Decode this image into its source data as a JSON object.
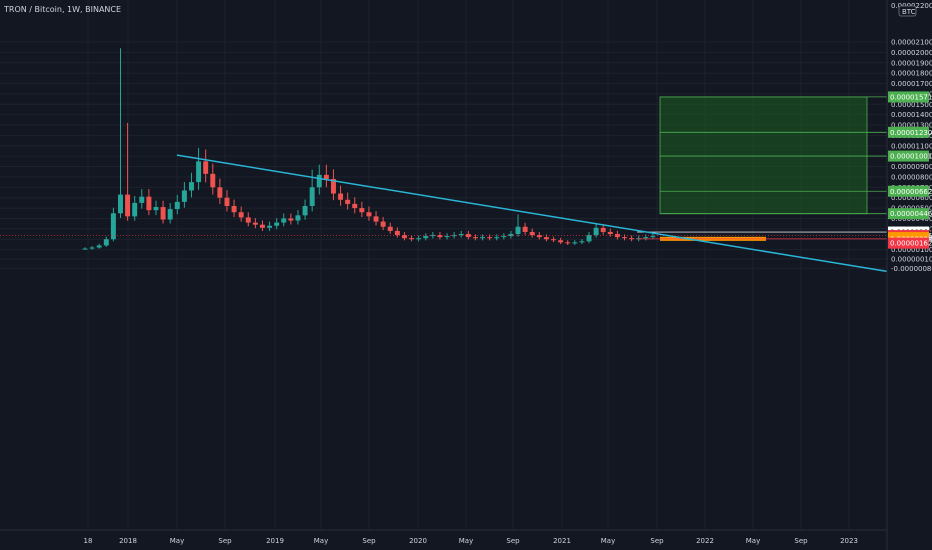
{
  "header": {
    "symbol_title": "TRON / Bitcoin, 1W, BINANCE",
    "currency": "BTC",
    "top_axis_label": "0.00002200"
  },
  "colors": {
    "background": "#131722",
    "up": "#26a69a",
    "down": "#ef5350",
    "trendline": "#29b6d6",
    "target_zone": "#1b5e20",
    "target_line": "#4caf50",
    "target_badge": "#4caf50",
    "current_price_badge": "#f23645",
    "entry_badge": "#ff9800"
  },
  "chart_data": {
    "type": "candlestick",
    "ylim": [
      -9e-07,
      2.2e-05
    ],
    "y_ticks": [
      "0.00002100",
      "0.00002000",
      "0.00001900",
      "0.00001800",
      "0.00001700",
      "0.00001600",
      "0.00001500",
      "0.00001400",
      "0.00001300",
      "0.00001200",
      "0.00001100",
      "0.00001000",
      "0.00000900",
      "0.00000800",
      "0.00000700",
      "0.00000600",
      "0.00000500",
      "0.00000400",
      "0.00000300",
      "0.00000200",
      "0.00000100",
      "0.00000010",
      "-0.00000080"
    ],
    "x_ticks": [
      "18",
      "2018",
      "May",
      "Sep",
      "2019",
      "May",
      "Sep",
      "2020",
      "May",
      "Sep",
      "2021",
      "May",
      "Sep",
      "2022",
      "May",
      "Sep",
      "2023"
    ],
    "series_close": [
      1.1e-06,
      1.2e-06,
      1.4e-06,
      2e-06,
      4.5e-06,
      6.3e-06,
      4.2e-06,
      5.5e-06,
      6.1e-06,
      4.8e-06,
      5.1e-06,
      3.9e-06,
      4.9e-06,
      5.6e-06,
      6.7e-06,
      7.5e-06,
      9.5e-06,
      8.3e-06,
      7e-06,
      6e-06,
      5.2e-06,
      4.6e-06,
      4.1e-06,
      3.6e-06,
      3.4e-06,
      3.1e-06,
      3.3e-06,
      3.6e-06,
      4e-06,
      3.8e-06,
      4.3e-06,
      5.2e-06,
      7e-06,
      8.2e-06,
      7.8e-06,
      6.4e-06,
      5.8e-06,
      5.4e-06,
      5e-06,
      4.6e-06,
      4.2e-06,
      3.7e-06,
      3.2e-06,
      2.8e-06,
      2.4e-06,
      2.1e-06,
      2e-06,
      2.1e-06,
      2.3e-06,
      2.4e-06,
      2.2e-06,
      2.3e-06,
      2.4e-06,
      2.5e-06,
      2.2e-06,
      2.1e-06,
      2.2e-06,
      2.1e-06,
      2.2e-06,
      2.3e-06,
      2.5e-06,
      3.2e-06,
      2.7e-06,
      2.4e-06,
      2.2e-06,
      2e-06,
      1.9e-06,
      1.7e-06,
      1.6e-06,
      1.7e-06,
      1.8e-06,
      2.4e-06,
      3.1e-06,
      2.7e-06,
      2.5e-06,
      2.2e-06,
      2.1e-06,
      2e-06,
      2.1e-06,
      2.2e-06,
      2.3e-06
    ],
    "trendline": {
      "from": [
        "2018-05",
        1.01e-05
      ],
      "to": [
        "2023-03",
        -1.1e-06
      ]
    },
    "horizontal_lines": [
      2.69e-06,
      2.35e-06,
      2.03e-06
    ],
    "target_zone": {
      "from": "2021-12",
      "to": "2023-03",
      "low": 4.46e-06,
      "high": 1.571e-05
    },
    "price_levels": [
      {
        "label": "0.00001571",
        "value": 1.571e-05,
        "kind": "target"
      },
      {
        "label": "0.00001230",
        "value": 1.23e-05,
        "kind": "target"
      },
      {
        "label": "0.00001001",
        "value": 1.001e-05,
        "kind": "target"
      },
      {
        "label": "0.00000662",
        "value": 6.62e-06,
        "kind": "target"
      },
      {
        "label": "0.00000446",
        "value": 4.46e-06,
        "kind": "target"
      },
      {
        "label": "0.00000269",
        "value": 2.69e-06,
        "kind": "white"
      },
      {
        "label": "0.00000235",
        "value": 2.35e-06,
        "kind": "current"
      },
      {
        "label": "6d 15h",
        "value": 2.23e-06,
        "kind": "countdown"
      },
      {
        "label": "0.00000216",
        "value": 2.16e-06,
        "kind": "entry"
      },
      {
        "label": "0.00000203",
        "value": 2.03e-06,
        "kind": "entry"
      },
      {
        "label": "0.00000162",
        "value": 1.62e-06,
        "kind": "current"
      }
    ]
  }
}
